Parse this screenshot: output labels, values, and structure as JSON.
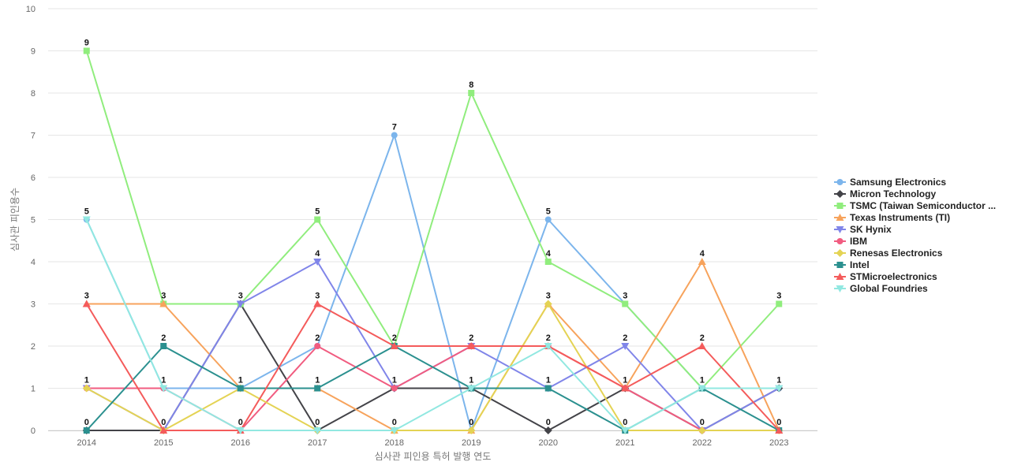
{
  "chart_data": {
    "type": "line",
    "xlabel": "심사관 피인용 특허 발행 연도",
    "ylabel": "심사관 피인용수",
    "ylim": [
      0,
      10
    ],
    "yticks": [
      0,
      1,
      2,
      3,
      4,
      5,
      6,
      7,
      8,
      9,
      10
    ],
    "x": [
      "2014",
      "2015",
      "2016",
      "2017",
      "2018",
      "2019",
      "2020",
      "2021",
      "2022",
      "2023"
    ],
    "grid": true,
    "legend_position": "right",
    "series": [
      {
        "name": "Samsung Electronics",
        "color": "#7cb5ec",
        "marker": "circle",
        "values": [
          5,
          1,
          1,
          2,
          7,
          0,
          5,
          3,
          1,
          1
        ]
      },
      {
        "name": "Micron Technology",
        "color": "#434348",
        "marker": "diamond",
        "values": [
          0,
          0,
          3,
          0,
          1,
          1,
          0,
          1,
          0,
          1
        ]
      },
      {
        "name": "TSMC (Taiwan Semiconductor ...",
        "color": "#90ed7d",
        "marker": "square",
        "values": [
          9,
          3,
          3,
          5,
          2,
          8,
          4,
          3,
          1,
          3
        ]
      },
      {
        "name": "Texas Instruments (TI)",
        "color": "#f7a35c",
        "marker": "triangle",
        "values": [
          3,
          3,
          1,
          1,
          0,
          0,
          3,
          1,
          4,
          0
        ]
      },
      {
        "name": "SK Hynix",
        "color": "#8085e9",
        "marker": "triangle-down",
        "values": [
          1,
          0,
          3,
          4,
          1,
          2,
          1,
          2,
          0,
          1
        ]
      },
      {
        "name": "IBM",
        "color": "#f15c80",
        "marker": "circle",
        "values": [
          1,
          1,
          0,
          2,
          1,
          2,
          2,
          1,
          0,
          0
        ]
      },
      {
        "name": "Renesas Electronics",
        "color": "#e4d354",
        "marker": "diamond",
        "values": [
          1,
          0,
          1,
          0,
          0,
          0,
          3,
          0,
          0,
          0
        ]
      },
      {
        "name": "Intel",
        "color": "#2b908f",
        "marker": "square",
        "values": [
          0,
          2,
          1,
          1,
          2,
          1,
          1,
          0,
          1,
          0
        ]
      },
      {
        "name": "STMicroelectronics",
        "color": "#f45b5b",
        "marker": "triangle",
        "values": [
          3,
          0,
          0,
          3,
          2,
          2,
          2,
          1,
          2,
          0
        ]
      },
      {
        "name": "Global Foundries",
        "color": "#91e8e1",
        "marker": "triangle-down",
        "values": [
          5,
          1,
          0,
          0,
          0,
          1,
          2,
          0,
          1,
          1
        ]
      }
    ],
    "data_labels": [
      {
        "x_index": 0,
        "text": "9",
        "value": 9
      },
      {
        "x_index": 0,
        "text": "5",
        "value": 5
      },
      {
        "x_index": 0,
        "text": "3",
        "value": 3
      },
      {
        "x_index": 0,
        "text": "1",
        "value": 1
      },
      {
        "x_index": 0,
        "text": "0",
        "value": 0
      },
      {
        "x_index": 1,
        "text": "3",
        "value": 3
      },
      {
        "x_index": 1,
        "text": "2",
        "value": 2
      },
      {
        "x_index": 1,
        "text": "1",
        "value": 1
      },
      {
        "x_index": 1,
        "text": "0",
        "value": 0
      },
      {
        "x_index": 2,
        "text": "3",
        "value": 3
      },
      {
        "x_index": 2,
        "text": "1",
        "value": 1
      },
      {
        "x_index": 2,
        "text": "0",
        "value": 0
      },
      {
        "x_index": 3,
        "text": "5",
        "value": 5
      },
      {
        "x_index": 3,
        "text": "4",
        "value": 4
      },
      {
        "x_index": 3,
        "text": "3",
        "value": 3
      },
      {
        "x_index": 3,
        "text": "2",
        "value": 2
      },
      {
        "x_index": 3,
        "text": "1",
        "value": 1
      },
      {
        "x_index": 3,
        "text": "0",
        "value": 0
      },
      {
        "x_index": 4,
        "text": "7",
        "value": 7
      },
      {
        "x_index": 4,
        "text": "2",
        "value": 2
      },
      {
        "x_index": 4,
        "text": "1",
        "value": 1
      },
      {
        "x_index": 4,
        "text": "0",
        "value": 0
      },
      {
        "x_index": 5,
        "text": "8",
        "value": 8
      },
      {
        "x_index": 5,
        "text": "2",
        "value": 2
      },
      {
        "x_index": 5,
        "text": "1",
        "value": 1
      },
      {
        "x_index": 5,
        "text": "0",
        "value": 0
      },
      {
        "x_index": 6,
        "text": "5",
        "value": 5
      },
      {
        "x_index": 6,
        "text": "4",
        "value": 4
      },
      {
        "x_index": 6,
        "text": "3",
        "value": 3
      },
      {
        "x_index": 6,
        "text": "2",
        "value": 2
      },
      {
        "x_index": 6,
        "text": "1",
        "value": 1
      },
      {
        "x_index": 6,
        "text": "0",
        "value": 0
      },
      {
        "x_index": 7,
        "text": "3",
        "value": 3
      },
      {
        "x_index": 7,
        "text": "2",
        "value": 2
      },
      {
        "x_index": 7,
        "text": "1",
        "value": 1
      },
      {
        "x_index": 7,
        "text": "0",
        "value": 0
      },
      {
        "x_index": 8,
        "text": "4",
        "value": 4
      },
      {
        "x_index": 8,
        "text": "2",
        "value": 2
      },
      {
        "x_index": 8,
        "text": "1",
        "value": 1
      },
      {
        "x_index": 8,
        "text": "0",
        "value": 0
      },
      {
        "x_index": 9,
        "text": "3",
        "value": 3
      },
      {
        "x_index": 9,
        "text": "1",
        "value": 1
      },
      {
        "x_index": 9,
        "text": "0",
        "value": 0
      }
    ]
  }
}
